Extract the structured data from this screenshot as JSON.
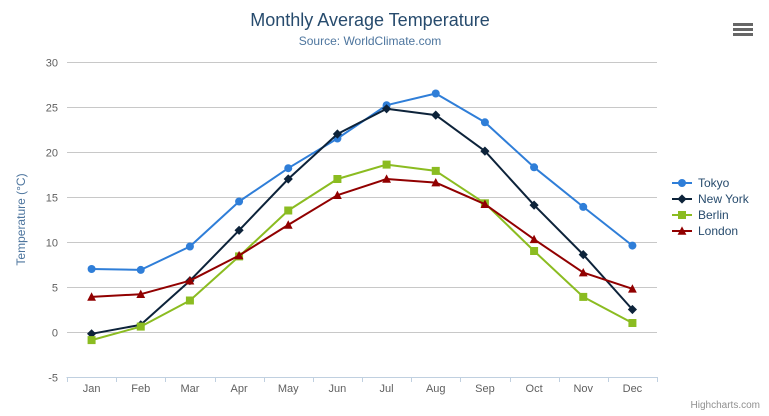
{
  "credits": "Highcharts.com",
  "styles": {
    "title_color": "#274b6d",
    "subtitle_color": "#4d759e",
    "ytitle_color": "#4d759e",
    "label_color": "#606060",
    "grid_color": "#c8c8c8",
    "axis_line_color": "#c0d0e0",
    "legend_text_color": "#274b6d",
    "credits_color": "#909090",
    "menu_icon_color": "#666666"
  },
  "chart_data": {
    "type": "line",
    "title": "Monthly Average Temperature",
    "subtitle": "Source: WorldClimate.com",
    "xlabel": "",
    "ylabel": "Temperature (°C)",
    "categories": [
      "Jan",
      "Feb",
      "Mar",
      "Apr",
      "May",
      "Jun",
      "Jul",
      "Aug",
      "Sep",
      "Oct",
      "Nov",
      "Dec"
    ],
    "series": [
      {
        "name": "Tokyo",
        "color": "#2f7ed8",
        "marker": "circle",
        "values": [
          7.0,
          6.9,
          9.5,
          14.5,
          18.2,
          21.5,
          25.2,
          26.5,
          23.3,
          18.3,
          13.9,
          9.6
        ]
      },
      {
        "name": "New York",
        "color": "#0d233a",
        "marker": "diamond",
        "values": [
          -0.2,
          0.8,
          5.7,
          11.3,
          17.0,
          22.0,
          24.8,
          24.1,
          20.1,
          14.1,
          8.6,
          2.5
        ]
      },
      {
        "name": "Berlin",
        "color": "#8bbc21",
        "marker": "square",
        "values": [
          -0.9,
          0.6,
          3.5,
          8.4,
          13.5,
          17.0,
          18.6,
          17.9,
          14.3,
          9.0,
          3.9,
          1.0
        ]
      },
      {
        "name": "London",
        "color": "#910000",
        "marker": "triangle",
        "values": [
          3.9,
          4.2,
          5.7,
          8.5,
          11.9,
          15.2,
          17.0,
          16.6,
          14.2,
          10.3,
          6.6,
          4.8
        ]
      }
    ],
    "ylim": [
      -5,
      30
    ],
    "ytick_interval": 5,
    "yticks": [
      -5,
      0,
      5,
      10,
      15,
      20,
      25,
      30
    ],
    "grid": true,
    "legend_position": "right"
  }
}
